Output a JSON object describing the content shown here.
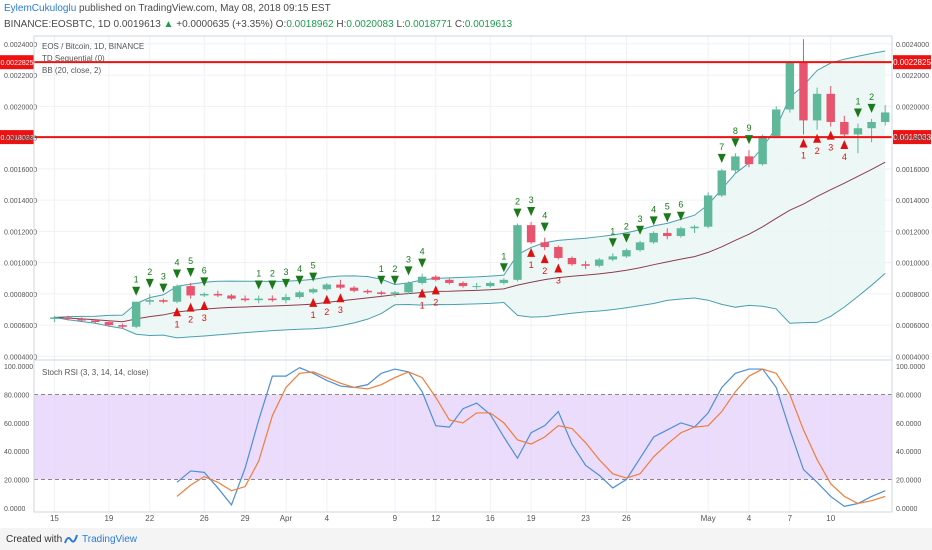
{
  "header": {
    "author": "EylemCukuloglu",
    "published": "published on TradingView.com, May 08, 2018 09:15 EST",
    "symbol": "BINANCE:EOSBTC, 1D",
    "last": "0.0019613",
    "change_arrow": "▲",
    "change": "+0.0000635 (+3.35%)",
    "o_label": "O:",
    "o": "0.0018962",
    "h_label": "H:",
    "h": "0.0020083",
    "l_label": "L:",
    "l": "0.0018771",
    "c_label": "C:",
    "c": "0.0019613"
  },
  "footer": {
    "created": "Created with",
    "brand": "TradingView"
  },
  "colors": {
    "bull": "#5fb89a",
    "bear": "#e8546e",
    "pink": "#f26a9a",
    "band": "#4a9fae",
    "basis": "#8e3b4c",
    "hline": "#ee1111",
    "td_sell": "#1a7a1a",
    "td_buy": "#dd1111",
    "stoch_k": "#4d8fd6",
    "stoch_d": "#f07d3a",
    "stoch_fill": "#e3cdfb"
  },
  "chart_data": [
    {
      "type": "candlestick",
      "legend": [
        "EOS / Bitcoin, 1D, BINANCE",
        "TD Sequential (0)",
        "BB (20, close, 2)"
      ],
      "y_axis_ticks": [
        "0.0004000",
        "0.0006000",
        "0.0008000",
        "0.0010000",
        "0.0012000",
        "0.0014000",
        "0.0016000",
        "0.0018000",
        "0.0020000",
        "0.0022000",
        "0.0024000"
      ],
      "ylim": [
        0.00039,
        0.00245
      ],
      "x_ticks": [
        [
          "15",
          0
        ],
        [
          "19",
          4
        ],
        [
          "22",
          7
        ],
        [
          "26",
          11
        ],
        [
          "29",
          14
        ],
        [
          "Apr",
          17
        ],
        [
          "4",
          20
        ],
        [
          "9",
          25
        ],
        [
          "12",
          28
        ],
        [
          "16",
          32
        ],
        [
          "19",
          35
        ],
        [
          "23",
          39
        ],
        [
          "26",
          42
        ],
        [
          "May",
          48
        ],
        [
          "4",
          51
        ],
        [
          "7",
          54
        ],
        [
          "10",
          57
        ]
      ],
      "xlim": [
        -1.5,
        61.5
      ],
      "horizontal_lines": [
        {
          "value": 0.0022825,
          "label": "0.0022825"
        },
        {
          "value": 0.0018033,
          "label": "0.0018033"
        }
      ],
      "ohlc": [
        [
          0.00064,
          0.00066,
          0.00062,
          0.00065
        ],
        [
          0.00065,
          0.00066,
          0.00063,
          0.00064
        ],
        [
          0.00064,
          0.00065,
          0.00062,
          0.00063
        ],
        [
          0.00063,
          0.00064,
          0.00061,
          0.00062
        ],
        [
          0.00062,
          0.00063,
          0.00059,
          0.0006
        ],
        [
          0.0006,
          0.00061,
          0.00058,
          0.00059
        ],
        [
          0.00059,
          0.00075,
          0.00058,
          0.00075
        ],
        [
          0.00075,
          0.0008,
          0.00073,
          0.00076
        ],
        [
          0.00076,
          0.00077,
          0.00074,
          0.00075
        ],
        [
          0.00075,
          0.00086,
          0.00074,
          0.00085
        ],
        [
          0.00085,
          0.00087,
          0.00077,
          0.00079
        ],
        [
          0.00079,
          0.00081,
          0.00078,
          0.0008
        ],
        [
          0.0008,
          0.00082,
          0.00078,
          0.00079
        ],
        [
          0.00079,
          0.0008,
          0.00076,
          0.00077
        ],
        [
          0.00077,
          0.00079,
          0.00075,
          0.00076
        ],
        [
          0.00076,
          0.00079,
          0.00074,
          0.00077
        ],
        [
          0.00077,
          0.00079,
          0.00075,
          0.00076
        ],
        [
          0.00076,
          0.0008,
          0.00074,
          0.00078
        ],
        [
          0.00078,
          0.00082,
          0.00077,
          0.00081
        ],
        [
          0.00081,
          0.00084,
          0.0008,
          0.00083
        ],
        [
          0.00083,
          0.00087,
          0.00082,
          0.00086
        ],
        [
          0.00086,
          0.00089,
          0.00083,
          0.00084
        ],
        [
          0.00084,
          0.00085,
          0.00081,
          0.00082
        ],
        [
          0.00082,
          0.00083,
          0.0008,
          0.00081
        ],
        [
          0.00081,
          0.00082,
          0.00079,
          0.0008
        ],
        [
          0.0008,
          0.00082,
          0.00078,
          0.00081
        ],
        [
          0.00081,
          0.00088,
          0.0008,
          0.00087
        ],
        [
          0.00087,
          0.00093,
          0.00086,
          0.00091
        ],
        [
          0.00091,
          0.00092,
          0.00088,
          0.00089
        ],
        [
          0.00089,
          0.0009,
          0.00086,
          0.00087
        ],
        [
          0.00087,
          0.00088,
          0.00084,
          0.00085
        ],
        [
          0.00085,
          0.00087,
          0.00083,
          0.00085
        ],
        [
          0.00085,
          0.00088,
          0.00084,
          0.00087
        ],
        [
          0.00087,
          0.0009,
          0.00086,
          0.00089
        ],
        [
          0.00089,
          0.00125,
          0.00088,
          0.00124
        ],
        [
          0.00124,
          0.00126,
          0.00112,
          0.00113
        ],
        [
          0.00113,
          0.00116,
          0.00108,
          0.0011
        ],
        [
          0.0011,
          0.00111,
          0.00102,
          0.00103
        ],
        [
          0.00103,
          0.00104,
          0.00098,
          0.00099
        ],
        [
          0.00099,
          0.00101,
          0.00096,
          0.00098
        ],
        [
          0.00098,
          0.00103,
          0.00097,
          0.00102
        ],
        [
          0.00102,
          0.00106,
          0.00101,
          0.00104
        ],
        [
          0.00104,
          0.00109,
          0.00103,
          0.00108
        ],
        [
          0.00108,
          0.00114,
          0.00107,
          0.00113
        ],
        [
          0.00113,
          0.0012,
          0.00112,
          0.00119
        ],
        [
          0.00119,
          0.00122,
          0.00115,
          0.00117
        ],
        [
          0.00117,
          0.00123,
          0.00116,
          0.00122
        ],
        [
          0.00122,
          0.00124,
          0.00119,
          0.00123
        ],
        [
          0.00123,
          0.00145,
          0.00122,
          0.00143
        ],
        [
          0.00143,
          0.0016,
          0.00142,
          0.00159
        ],
        [
          0.00159,
          0.0017,
          0.00157,
          0.00168
        ],
        [
          0.00168,
          0.00172,
          0.00161,
          0.00163
        ],
        [
          0.00163,
          0.00182,
          0.00162,
          0.00181
        ],
        [
          0.00181,
          0.002,
          0.0018,
          0.00198
        ],
        [
          0.00198,
          0.00229,
          0.00196,
          0.00228
        ],
        [
          0.00228,
          0.00243,
          0.00182,
          0.00191
        ],
        [
          0.00191,
          0.00212,
          0.00185,
          0.00208
        ],
        [
          0.00208,
          0.00213,
          0.00187,
          0.0019
        ],
        [
          0.0019,
          0.00194,
          0.00181,
          0.00182
        ],
        [
          0.00182,
          0.00189,
          0.0017,
          0.00186
        ],
        [
          0.00186,
          0.00192,
          0.00177,
          0.0019
        ],
        [
          0.0019,
          0.002008,
          0.001877,
          0.001961
        ]
      ],
      "td_sell": [
        [
          6,
          "1"
        ],
        [
          7,
          "2"
        ],
        [
          8,
          "3"
        ],
        [
          9,
          "4"
        ],
        [
          10,
          "5"
        ],
        [
          11,
          "6"
        ],
        [
          15,
          "1"
        ],
        [
          16,
          "2"
        ],
        [
          17,
          "3"
        ],
        [
          18,
          "4"
        ],
        [
          19,
          "5"
        ],
        [
          24,
          "1"
        ],
        [
          25,
          "2"
        ],
        [
          26,
          "3"
        ],
        [
          27,
          "4"
        ],
        [
          33,
          "1"
        ],
        [
          34,
          "2"
        ],
        [
          35,
          "3"
        ],
        [
          36,
          "4"
        ],
        [
          41,
          "1"
        ],
        [
          42,
          "2"
        ],
        [
          43,
          "3"
        ],
        [
          44,
          "4"
        ],
        [
          45,
          "5"
        ],
        [
          46,
          "6"
        ],
        [
          49,
          "7"
        ],
        [
          50,
          "8"
        ],
        [
          51,
          "9"
        ],
        [
          59,
          "1"
        ],
        [
          60,
          "2"
        ]
      ],
      "td_buy": [
        [
          9,
          "1"
        ],
        [
          10,
          "2"
        ],
        [
          11,
          "3"
        ],
        [
          19,
          "1"
        ],
        [
          20,
          "2"
        ],
        [
          21,
          "3"
        ],
        [
          27,
          "1"
        ],
        [
          28,
          "2"
        ],
        [
          35,
          "1"
        ],
        [
          36,
          "2"
        ],
        [
          37,
          "3"
        ],
        [
          55,
          "1"
        ],
        [
          56,
          "2"
        ],
        [
          57,
          "3"
        ],
        [
          58,
          "4"
        ]
      ]
    },
    {
      "type": "line",
      "title": "Stoch RSI (3, 3, 14, 14, close)",
      "y_axis_ticks": [
        "0.0000",
        "20.0000",
        "40.0000",
        "60.0000",
        "80.0000",
        "100.0000"
      ],
      "ylim": [
        -3,
        103
      ],
      "bands": [
        20,
        80
      ],
      "series": [
        {
          "name": "K",
          "values": [
            18,
            26,
            25,
            14,
            2,
            28,
            62,
            93,
            93,
            99,
            95,
            90,
            86,
            85,
            87,
            95,
            98,
            96,
            82,
            58,
            57,
            70,
            74,
            66,
            50,
            35,
            53,
            58,
            68,
            45,
            30,
            23,
            14,
            20,
            35,
            50,
            55,
            60,
            57,
            67,
            85,
            95,
            98,
            98,
            85,
            55,
            27,
            18,
            8,
            1,
            3,
            8,
            12
          ]
        },
        {
          "name": "D",
          "values": [
            8,
            16,
            22,
            18,
            12,
            15,
            33,
            65,
            85,
            95,
            96,
            92,
            88,
            85,
            84,
            87,
            92,
            96,
            92,
            78,
            62,
            60,
            67,
            67,
            60,
            48,
            45,
            50,
            58,
            56,
            46,
            34,
            24,
            21,
            24,
            36,
            45,
            53,
            57,
            58,
            68,
            82,
            93,
            98,
            95,
            80,
            55,
            34,
            17,
            8,
            3,
            5,
            8
          ]
        }
      ]
    }
  ]
}
